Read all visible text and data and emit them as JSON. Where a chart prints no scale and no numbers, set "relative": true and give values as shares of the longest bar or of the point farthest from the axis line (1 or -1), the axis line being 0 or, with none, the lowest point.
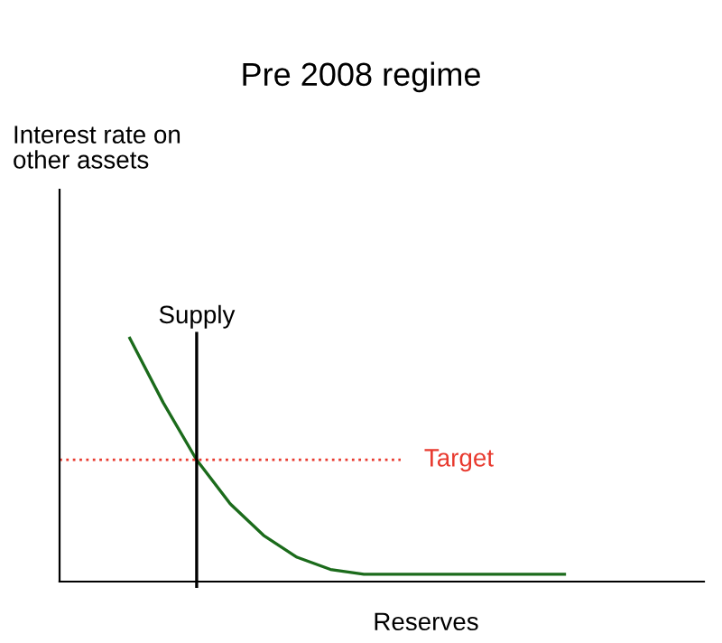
{
  "chart_data": {
    "type": "line",
    "title": "Pre 2008 regime",
    "xlabel": "Reserves",
    "annotations": [
      "Interest rate on\nother assets",
      "Supply"
    ],
    "relative": true,
    "categories": [
      null,
      null,
      null,
      null,
      null,
      null,
      null,
      null,
      null,
      null,
      null,
      null,
      null,
      null
    ],
    "series": [
      {
        "color": "#1b6b1b",
        "values": [
          1,
          0.735,
          0.5,
          0.32,
          0.19,
          0.1,
          0.05,
          0.03,
          0.03,
          0.03,
          0.03,
          0.03,
          0.03,
          0.03
        ]
      }
    ],
    "ref_lines": [
      {
        "axis": "y",
        "value": 0.5,
        "label": "Target",
        "color": "#e8392e",
        "line_style": "dotted"
      }
    ],
    "grid": false,
    "legend": false,
    "marker": "none",
    "line_style": "solid"
  }
}
